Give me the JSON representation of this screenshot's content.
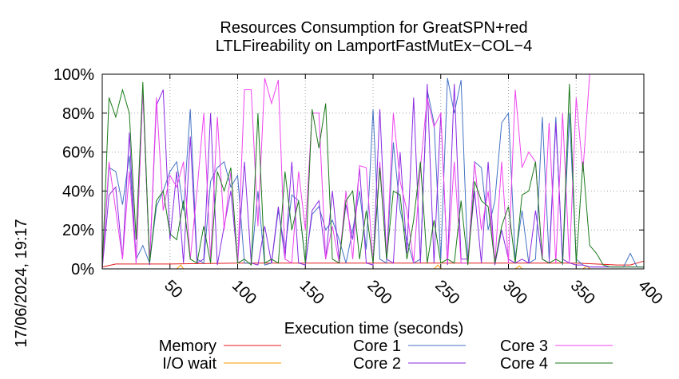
{
  "chart_data": {
    "type": "line",
    "title_lines": [
      "Resources Consumption for GreatSPN+red",
      "LTLFireability on LamportFastMutEx−COL−4"
    ],
    "xlabel": "Execution time (seconds)",
    "ylabel": "",
    "timestamp": "17/06/2024, 19:17",
    "xlim": [
      0,
      400
    ],
    "ylim": [
      0,
      100
    ],
    "x_ticks": [
      50,
      100,
      150,
      200,
      250,
      300,
      350,
      400
    ],
    "y_ticks": [
      {
        "value": 0,
        "label": "0%"
      },
      {
        "value": 20,
        "label": "20%"
      },
      {
        "value": 40,
        "label": "40%"
      },
      {
        "value": 60,
        "label": "60%"
      },
      {
        "value": 80,
        "label": "80%"
      },
      {
        "value": 100,
        "label": "100%"
      }
    ],
    "grid": true,
    "legend_position": "bottom",
    "series": [
      {
        "name": "Memory",
        "color": "#e41a1c",
        "x": [
          0,
          10,
          50,
          100,
          150,
          200,
          250,
          300,
          350,
          380,
          390,
          395,
          400
        ],
        "y": [
          1,
          2.5,
          2.5,
          3,
          3,
          3,
          3,
          3,
          3,
          2,
          2,
          3,
          4
        ]
      },
      {
        "name": "I/O wait",
        "color": "#ff9900",
        "x": [
          0,
          55,
          58,
          60,
          245,
          248,
          250,
          305,
          308,
          310,
          355,
          358,
          360,
          400
        ],
        "y": [
          0,
          0,
          2,
          0,
          0,
          2,
          0,
          0,
          1.5,
          0,
          0,
          1.5,
          0,
          0
        ]
      },
      {
        "name": "Core 1",
        "color": "#4472c4",
        "x": [
          0,
          5,
          10,
          15,
          20,
          25,
          30,
          35,
          40,
          45,
          50,
          55,
          60,
          65,
          70,
          75,
          80,
          85,
          90,
          95,
          100,
          105,
          110,
          115,
          120,
          125,
          130,
          135,
          140,
          145,
          150,
          155,
          160,
          165,
          170,
          175,
          180,
          185,
          190,
          195,
          200,
          205,
          210,
          215,
          220,
          225,
          230,
          235,
          240,
          245,
          250,
          255,
          260,
          265,
          270,
          275,
          280,
          285,
          290,
          295,
          300,
          305,
          310,
          315,
          320,
          325,
          330,
          335,
          340,
          345,
          350,
          355,
          360,
          365,
          370,
          375,
          380,
          385,
          390,
          395,
          400
        ],
        "y": [
          0,
          52,
          50,
          33,
          58,
          5,
          12,
          3,
          32,
          40,
          50,
          55,
          30,
          82,
          5,
          3,
          45,
          52,
          55,
          42,
          48,
          3,
          3,
          40,
          2,
          3,
          30,
          10,
          38,
          35,
          3,
          28,
          32,
          20,
          25,
          15,
          3,
          20,
          40,
          10,
          82,
          5,
          3,
          65,
          30,
          15,
          3,
          5,
          92,
          75,
          5,
          98,
          80,
          97,
          3,
          55,
          52,
          20,
          35,
          75,
          80,
          5,
          30,
          3,
          5,
          78,
          5,
          78,
          2,
          80,
          5,
          2,
          1,
          1,
          1,
          1,
          1,
          1,
          8,
          1,
          1
        ]
      },
      {
        "name": "Core 2",
        "color": "#8a2be2",
        "x": [
          0,
          5,
          10,
          15,
          20,
          25,
          30,
          35,
          40,
          45,
          50,
          55,
          60,
          65,
          70,
          75,
          80,
          85,
          90,
          95,
          100,
          105,
          110,
          115,
          120,
          125,
          130,
          135,
          140,
          145,
          150,
          155,
          160,
          165,
          170,
          175,
          180,
          185,
          190,
          195,
          200,
          205,
          210,
          215,
          220,
          225,
          230,
          235,
          240,
          245,
          250,
          255,
          260,
          265,
          270,
          275,
          280,
          285,
          290,
          295,
          300,
          305,
          310,
          315,
          320,
          325,
          330,
          335,
          340,
          345,
          350,
          355,
          360,
          365,
          370,
          375,
          380,
          385,
          390,
          395,
          400
        ],
        "y": [
          0,
          38,
          42,
          5,
          70,
          3,
          92,
          2,
          84,
          92,
          15,
          50,
          3,
          68,
          3,
          5,
          80,
          2,
          22,
          40,
          3,
          55,
          3,
          2,
          22,
          3,
          32,
          5,
          55,
          3,
          2,
          30,
          35,
          5,
          40,
          5,
          33,
          15,
          52,
          3,
          2,
          82,
          5,
          3,
          60,
          8,
          88,
          3,
          95,
          3,
          80,
          2,
          95,
          5,
          5,
          40,
          3,
          55,
          2,
          20,
          5,
          3,
          5,
          3,
          30,
          5,
          3,
          75,
          5,
          3,
          2,
          2,
          1,
          1,
          1,
          1,
          1,
          1,
          1,
          1,
          1
        ]
      },
      {
        "name": "Core 3",
        "color": "#ee44ee",
        "x": [
          0,
          5,
          10,
          15,
          20,
          25,
          30,
          35,
          40,
          45,
          50,
          55,
          60,
          65,
          70,
          75,
          80,
          85,
          90,
          95,
          100,
          105,
          110,
          115,
          120,
          125,
          130,
          135,
          140,
          145,
          150,
          155,
          160,
          165,
          170,
          175,
          180,
          185,
          190,
          195,
          200,
          205,
          210,
          215,
          220,
          225,
          230,
          235,
          240,
          245,
          250,
          255,
          260,
          265,
          270,
          275,
          280,
          285,
          290,
          295,
          300,
          305,
          310,
          315,
          320,
          325,
          330,
          335,
          340,
          345,
          350,
          355,
          360,
          362,
          400
        ],
        "y": [
          0,
          55,
          30,
          5,
          50,
          3,
          92,
          3,
          88,
          30,
          48,
          42,
          55,
          5,
          40,
          80,
          5,
          78,
          20,
          50,
          3,
          92,
          92,
          22,
          98,
          85,
          97,
          5,
          3,
          50,
          20,
          80,
          80,
          5,
          22,
          3,
          40,
          5,
          53,
          52,
          3,
          55,
          5,
          80,
          45,
          30,
          3,
          52,
          88,
          73,
          80,
          3,
          55,
          3,
          3,
          55,
          20,
          40,
          3,
          55,
          3,
          92,
          52,
          60,
          55,
          5,
          75,
          3,
          80,
          3,
          88,
          50,
          100,
          100,
          100
        ]
      },
      {
        "name": "Core 4",
        "color": "#1a7a1a",
        "x": [
          0,
          5,
          10,
          15,
          20,
          25,
          30,
          35,
          40,
          45,
          50,
          55,
          60,
          65,
          70,
          75,
          80,
          85,
          90,
          95,
          100,
          105,
          110,
          115,
          120,
          125,
          130,
          135,
          140,
          145,
          150,
          155,
          160,
          165,
          170,
          175,
          180,
          185,
          190,
          195,
          200,
          205,
          210,
          215,
          220,
          225,
          230,
          235,
          240,
          245,
          250,
          255,
          260,
          265,
          270,
          275,
          280,
          285,
          290,
          295,
          300,
          305,
          310,
          315,
          320,
          325,
          330,
          335,
          340,
          345,
          350,
          355,
          360,
          365,
          370,
          375,
          400
        ],
        "y": [
          0,
          88,
          78,
          92,
          80,
          15,
          96,
          3,
          35,
          40,
          18,
          15,
          35,
          5,
          3,
          22,
          3,
          50,
          40,
          52,
          3,
          5,
          2,
          80,
          3,
          5,
          3,
          50,
          20,
          35,
          3,
          82,
          62,
          85,
          5,
          3,
          35,
          40,
          5,
          30,
          3,
          52,
          5,
          40,
          38,
          5,
          25,
          55,
          3,
          25,
          3,
          5,
          3,
          35,
          2,
          45,
          35,
          32,
          3,
          22,
          32,
          3,
          38,
          40,
          55,
          5,
          3,
          5,
          3,
          95,
          3,
          55,
          12,
          8,
          2,
          1,
          1
        ]
      }
    ]
  }
}
